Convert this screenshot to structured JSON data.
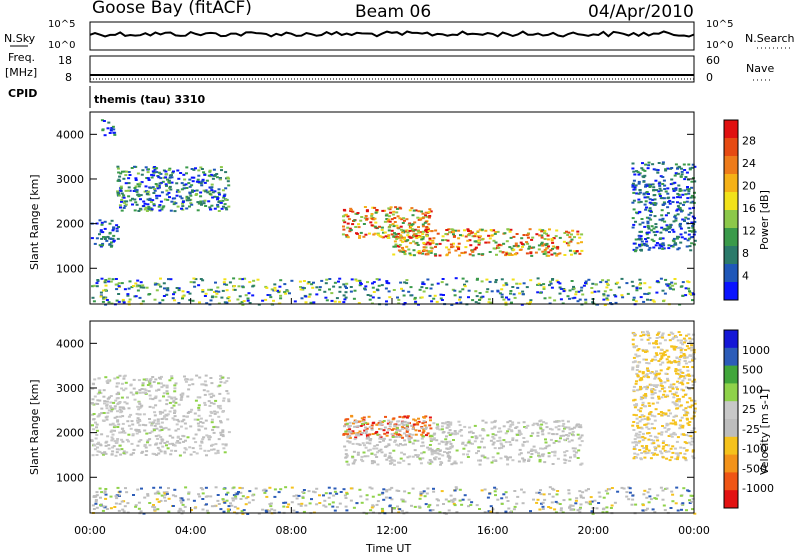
{
  "header": {
    "station": "Goose Bay (fitACF)",
    "beam": "Beam 06",
    "date": "04/Apr/2010"
  },
  "panels": {
    "nsky": {
      "left_label": "N.Sky",
      "right_label": "N.Search",
      "left_ticks": [
        "10^5",
        "10^0"
      ],
      "right_ticks": [
        "10^5",
        "10^0"
      ]
    },
    "freq": {
      "left_label_top": "Freq.",
      "left_label_bottom": "[MHz]",
      "right_label": "Nave",
      "left_ticks": [
        "18",
        "8"
      ],
      "right_ticks": [
        "60",
        "0"
      ]
    },
    "cpid": {
      "label": "CPID",
      "value": "themis (tau) 3310"
    }
  },
  "colors": {
    "power_scale": [
      "#0a14ff",
      "#1f57b8",
      "#2b7a6a",
      "#3a9a4a",
      "#8cc84a",
      "#f2e21a",
      "#f5b117",
      "#ee7b1a",
      "#e64a12",
      "#e01010"
    ],
    "velocity_scale": [
      "#e31212",
      "#ef5515",
      "#f3931a",
      "#f5c21c",
      "#bdbdbd",
      "#c8c8c8",
      "#8fd24a",
      "#41a63b",
      "#2c5cb8",
      "#1417d6"
    ]
  },
  "chart_data": [
    {
      "type": "heatmap",
      "title": "Power",
      "xlabel": "",
      "ylabel": "Slant Range [km]",
      "xlim": [
        "00:00",
        "00:00"
      ],
      "ylim": [
        200,
        4500
      ],
      "yticks": [
        "1000",
        "2000",
        "3000",
        "4000"
      ],
      "colorbar": {
        "label": "Power [dB]",
        "ticks": [
          "4",
          "8",
          "12",
          "16",
          "20",
          "24",
          "28"
        ]
      },
      "echo_regions": [
        {
          "time_hours": [
            0.0,
            1.1
          ],
          "range_km": [
            1500,
            2100
          ],
          "level": "low"
        },
        {
          "time_hours": [
            0.4,
            1.0
          ],
          "range_km": [
            3900,
            4350
          ],
          "level": "low"
        },
        {
          "time_hours": [
            1.0,
            5.5
          ],
          "range_km": [
            2300,
            3300
          ],
          "level": "low-mid"
        },
        {
          "time_hours": [
            10.0,
            13.5
          ],
          "range_km": [
            1700,
            2400
          ],
          "level": "high"
        },
        {
          "time_hours": [
            12.0,
            19.5
          ],
          "range_km": [
            1300,
            1900
          ],
          "level": "high"
        },
        {
          "time_hours": [
            21.5,
            24.0
          ],
          "range_km": [
            1400,
            3400
          ],
          "level": "low"
        },
        {
          "time_hours": [
            0.0,
            24.0
          ],
          "range_km": [
            200,
            800
          ],
          "level": "mixed"
        }
      ]
    },
    {
      "type": "heatmap",
      "title": "Velocity",
      "xlabel": "Time UT",
      "ylabel": "Slant Range [km]",
      "xticks": [
        "00:00",
        "04:00",
        "08:00",
        "12:00",
        "16:00",
        "20:00",
        "00:00"
      ],
      "ylim": [
        200,
        4500
      ],
      "yticks": [
        "1000",
        "2000",
        "3000",
        "4000"
      ],
      "colorbar": {
        "label": "Velocity [m s-1]",
        "ticks": [
          "1000",
          "500",
          "100",
          "25",
          "-25",
          "-100",
          "-500",
          "-1000"
        ]
      },
      "echo_regions": [
        {
          "time_hours": [
            0.0,
            5.5
          ],
          "range_km": [
            1500,
            3300
          ],
          "level": "grey"
        },
        {
          "time_hours": [
            10.0,
            13.5
          ],
          "range_km": [
            1900,
            2400
          ],
          "level": "orange-red"
        },
        {
          "time_hours": [
            10.0,
            19.5
          ],
          "range_km": [
            1300,
            2300
          ],
          "level": "grey"
        },
        {
          "time_hours": [
            21.5,
            24.0
          ],
          "range_km": [
            1400,
            4300
          ],
          "level": "yellow-grey"
        },
        {
          "time_hours": [
            0.0,
            24.0
          ],
          "range_km": [
            200,
            800
          ],
          "level": "mixed"
        }
      ]
    }
  ]
}
